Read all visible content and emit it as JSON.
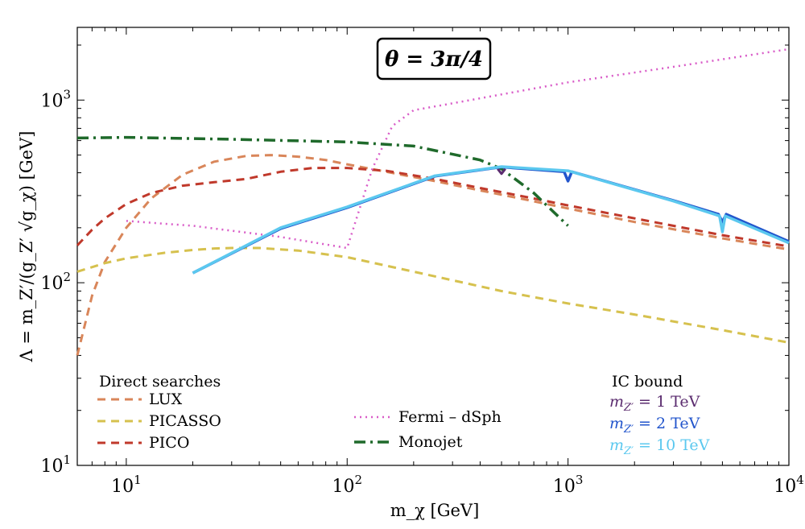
{
  "chart_data": {
    "type": "line",
    "title": "θ = 3π/4",
    "xlabel": "m_χ [GeV]",
    "ylabel": "Λ = m_Z′/(g_Z′ √g_χ) [GeV]",
    "xscale": "log",
    "yscale": "log",
    "xlim": [
      6,
      10000
    ],
    "ylim": [
      10,
      2500
    ],
    "x_ticks": [
      {
        "value": 10,
        "base": "10",
        "exp": "1"
      },
      {
        "value": 100,
        "base": "10",
        "exp": "2"
      },
      {
        "value": 1000,
        "base": "10",
        "exp": "3"
      },
      {
        "value": 10000,
        "base": "10",
        "exp": "4"
      }
    ],
    "y_ticks": [
      {
        "value": 10,
        "base": "10",
        "exp": "1"
      },
      {
        "value": 100,
        "base": "10",
        "exp": "2"
      },
      {
        "value": 1000,
        "base": "10",
        "exp": "3"
      }
    ],
    "legend_direct": {
      "heading": "Direct searches",
      "placement": "bottom-left",
      "entries": [
        "LUX",
        "PICASSO",
        "PICO"
      ]
    },
    "legend_other": {
      "placement": "bottom-center",
      "entries": [
        "Fermi – dSph",
        "Monojet"
      ]
    },
    "legend_ic": {
      "heading": "IC bound",
      "placement": "bottom-right",
      "entries": [
        {
          "var": "m",
          "sub": "Z′",
          "rest": " = 1 TeV",
          "color": "#5b2c6f"
        },
        {
          "var": "m",
          "sub": "Z′",
          "rest": " = 2 TeV",
          "color": "#2255cc"
        },
        {
          "var": "m",
          "sub": "Z′",
          "rest": " = 10 TeV",
          "color": "#5bc8ef"
        }
      ]
    },
    "series": [
      {
        "name": "LUX",
        "color": "#d9865a",
        "dash": "10,7",
        "width": 3,
        "x": [
          6,
          7,
          8,
          10,
          13,
          18,
          25,
          35,
          45,
          60,
          80,
          100,
          150,
          250,
          400,
          600,
          1000,
          2000,
          5000,
          10000
        ],
        "y": [
          40,
          85,
          130,
          200,
          290,
          390,
          460,
          495,
          500,
          490,
          470,
          445,
          405,
          360,
          320,
          290,
          255,
          215,
          175,
          152
        ]
      },
      {
        "name": "PICASSO",
        "color": "#d6c14e",
        "dash": "10,7",
        "width": 3,
        "x": [
          6,
          8,
          10,
          15,
          20,
          25,
          30,
          40,
          60,
          100,
          200,
          500,
          1000,
          2000,
          5000,
          10000
        ],
        "y": [
          115,
          128,
          136,
          146,
          151,
          154,
          155,
          155,
          150,
          138,
          115,
          90,
          77,
          67,
          55,
          47
        ]
      },
      {
        "name": "PICO",
        "color": "#c0392b",
        "dash": "10,7",
        "width": 3,
        "x": [
          6,
          7,
          8,
          10,
          13,
          18,
          25,
          35,
          50,
          70,
          100,
          150,
          250,
          400,
          600,
          1000,
          2000,
          5000,
          10000
        ],
        "y": [
          160,
          195,
          225,
          270,
          310,
          340,
          355,
          370,
          405,
          425,
          425,
          410,
          370,
          330,
          300,
          265,
          225,
          182,
          158
        ]
      },
      {
        "name": "Fermi – dSph",
        "color": "#d95cc8",
        "dash": "2,5",
        "width": 2.5,
        "x": [
          10,
          20,
          50,
          100,
          130,
          160,
          200,
          300,
          1000,
          3000,
          10000
        ],
        "y": [
          218,
          205,
          178,
          155,
          420,
          720,
          880,
          960,
          1250,
          1520,
          1900
        ]
      },
      {
        "name": "Monojet",
        "color": "#1f6a2b",
        "dash": "14,6,3,6",
        "width": 3.5,
        "x": [
          6,
          10,
          30,
          100,
          200,
          400,
          500,
          700,
          1000
        ],
        "y": [
          620,
          625,
          610,
          590,
          560,
          470,
          420,
          310,
          205
        ]
      },
      {
        "name": "IC bound m_Z′ = 1 TeV",
        "color": "#5b2c6f",
        "dash": "",
        "width": 3,
        "x": [
          480,
          500,
          520
        ],
        "y": [
          420,
          395,
          420
        ]
      },
      {
        "name": "IC bound m_Z′ = 2 TeV",
        "color": "#2255cc",
        "dash": "",
        "width": 3.5,
        "x": [
          20,
          50,
          100,
          250,
          500,
          960,
          1000,
          1040,
          3000,
          4800,
          5000,
          5200,
          10000
        ],
        "y": [
          113,
          198,
          258,
          383,
          430,
          405,
          360,
          405,
          282,
          237,
          215,
          237,
          168
        ]
      },
      {
        "name": "IC bound m_Z′ = 10 TeV",
        "color": "#5bc8ef",
        "dash": "",
        "width": 3.5,
        "x": [
          20,
          50,
          100,
          250,
          500,
          1000,
          3000,
          4850,
          5000,
          5150,
          10000
        ],
        "y": [
          113,
          200,
          260,
          385,
          432,
          410,
          280,
          232,
          190,
          232,
          165
        ]
      }
    ]
  }
}
